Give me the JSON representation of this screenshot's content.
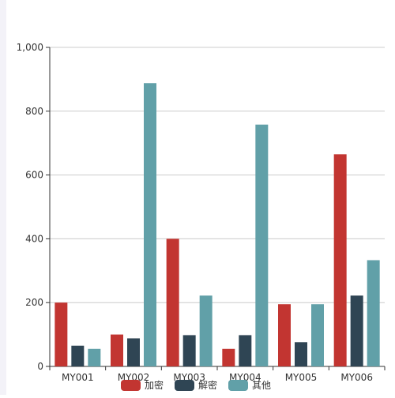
{
  "chart_data": {
    "type": "bar",
    "categories": [
      "MY001",
      "MY002",
      "MY003",
      "MY004",
      "MY005",
      "MY006"
    ],
    "series": [
      {
        "name": "加密",
        "color": "#c23531",
        "values": [
          200,
          100,
          400,
          55,
          195,
          665
        ]
      },
      {
        "name": "解密",
        "color": "#2f4554",
        "values": [
          65,
          88,
          98,
          98,
          76,
          222
        ]
      },
      {
        "name": "其他",
        "color": "#61a0a8",
        "values": [
          55,
          888,
          222,
          758,
          195,
          333
        ]
      }
    ],
    "ylim": [
      0,
      1000
    ],
    "yticks": [
      0,
      200,
      400,
      600,
      800,
      1000
    ],
    "ytick_labels": [
      "0",
      "200",
      "400",
      "600",
      "800",
      "1,000"
    ],
    "grid": true,
    "legend_position": "bottom-center"
  }
}
